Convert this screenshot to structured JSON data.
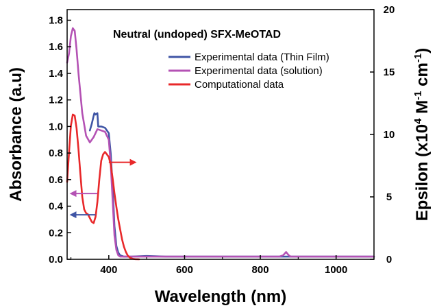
{
  "chart_data": {
    "type": "line",
    "title": "Neutral (undoped) SFX-MeOTAD",
    "xlabel": "Wavelength (nm)",
    "ylabel": "Absorbance (a.u)",
    "y2label_parts": [
      "Epsilon (x10",
      "4",
      " M",
      "-1",
      " cm",
      "-1",
      ")"
    ],
    "xlim": [
      290,
      1100
    ],
    "ylim": [
      0,
      1.88
    ],
    "y2lim": [
      0,
      20
    ],
    "x_ticks": [
      400,
      600,
      800,
      1000
    ],
    "y_ticks": [
      0.0,
      0.2,
      0.4,
      0.6,
      0.8,
      1.0,
      1.2,
      1.4,
      1.6,
      1.8
    ],
    "y_tick_labels": [
      "0.0",
      "0.2",
      "0.4",
      "0.6",
      "0.8",
      "1.0",
      "1.2",
      "1.4",
      "1.6",
      "1.8"
    ],
    "y2_ticks": [
      0,
      5,
      10,
      15,
      20
    ],
    "legend_position": "top-right",
    "grid": false,
    "series": [
      {
        "name": "Experimental data (Thin Film)",
        "color": "#3f55a5",
        "axis": "left",
        "x": [
          350,
          355,
          360,
          362,
          365,
          370,
          372,
          375,
          380,
          390,
          400,
          405,
          410,
          415,
          420,
          425,
          430,
          440,
          460,
          500,
          550,
          600,
          700,
          800,
          900,
          1000,
          1100
        ],
        "y": [
          0.97,
          1.02,
          1.08,
          1.1,
          1.09,
          1.1,
          1.0,
          1.0,
          1.0,
          0.99,
          0.95,
          0.8,
          0.55,
          0.25,
          0.1,
          0.05,
          0.03,
          0.02,
          0.02,
          0.025,
          0.02,
          0.02,
          0.02,
          0.02,
          0.02,
          0.02,
          0.02
        ]
      },
      {
        "name": "Experimental data (solution)",
        "color": "#b452b4",
        "axis": "left",
        "x": [
          290,
          295,
          300,
          305,
          310,
          315,
          320,
          330,
          340,
          350,
          360,
          370,
          380,
          390,
          400,
          405,
          410,
          415,
          420,
          425,
          430,
          440,
          460,
          500,
          600,
          700,
          800,
          850,
          860,
          868,
          875,
          880,
          900,
          1000,
          1100
        ],
        "y": [
          1.48,
          1.55,
          1.68,
          1.74,
          1.72,
          1.58,
          1.4,
          1.1,
          0.93,
          0.88,
          0.92,
          0.98,
          0.97,
          0.96,
          0.9,
          0.72,
          0.45,
          0.18,
          0.07,
          0.03,
          0.02,
          0.02,
          0.02,
          0.02,
          0.02,
          0.02,
          0.02,
          0.02,
          0.03,
          0.055,
          0.03,
          0.02,
          0.02,
          0.02,
          0.02
        ]
      },
      {
        "name": "Computational data",
        "color": "#e8282a",
        "axis": "right",
        "x": [
          290,
          295,
          300,
          305,
          310,
          315,
          320,
          325,
          330,
          335,
          340,
          345,
          350,
          355,
          360,
          365,
          370,
          375,
          380,
          385,
          390,
          395,
          400,
          405,
          410,
          415,
          420,
          425,
          430,
          435,
          440,
          445,
          450,
          455,
          460,
          465,
          470,
          480
        ],
        "y": [
          6.2,
          8.6,
          10.7,
          11.6,
          11.5,
          10.5,
          8.8,
          6.8,
          5.0,
          4.0,
          3.7,
          3.6,
          3.3,
          3.0,
          2.9,
          3.4,
          4.6,
          6.4,
          7.9,
          8.4,
          8.6,
          8.4,
          8.2,
          7.6,
          6.5,
          5.3,
          4.2,
          3.2,
          2.4,
          1.6,
          1.0,
          0.6,
          0.3,
          0.15,
          0.07,
          0.03,
          0.01,
          0.0
        ]
      }
    ],
    "arrows": [
      {
        "name": "right-axis-arrow",
        "color": "#e8282a",
        "y_axis": "left",
        "y": 0.73,
        "x_from": 400,
        "x_to": 470
      },
      {
        "name": "left-axis-arrow-solution",
        "color": "#b452b4",
        "y_axis": "left",
        "y": 0.495,
        "x_from": 370,
        "x_to": 300
      },
      {
        "name": "left-axis-arrow-film",
        "color": "#3f55a5",
        "y_axis": "left",
        "y": 0.335,
        "x_from": 365,
        "x_to": 300
      }
    ]
  }
}
